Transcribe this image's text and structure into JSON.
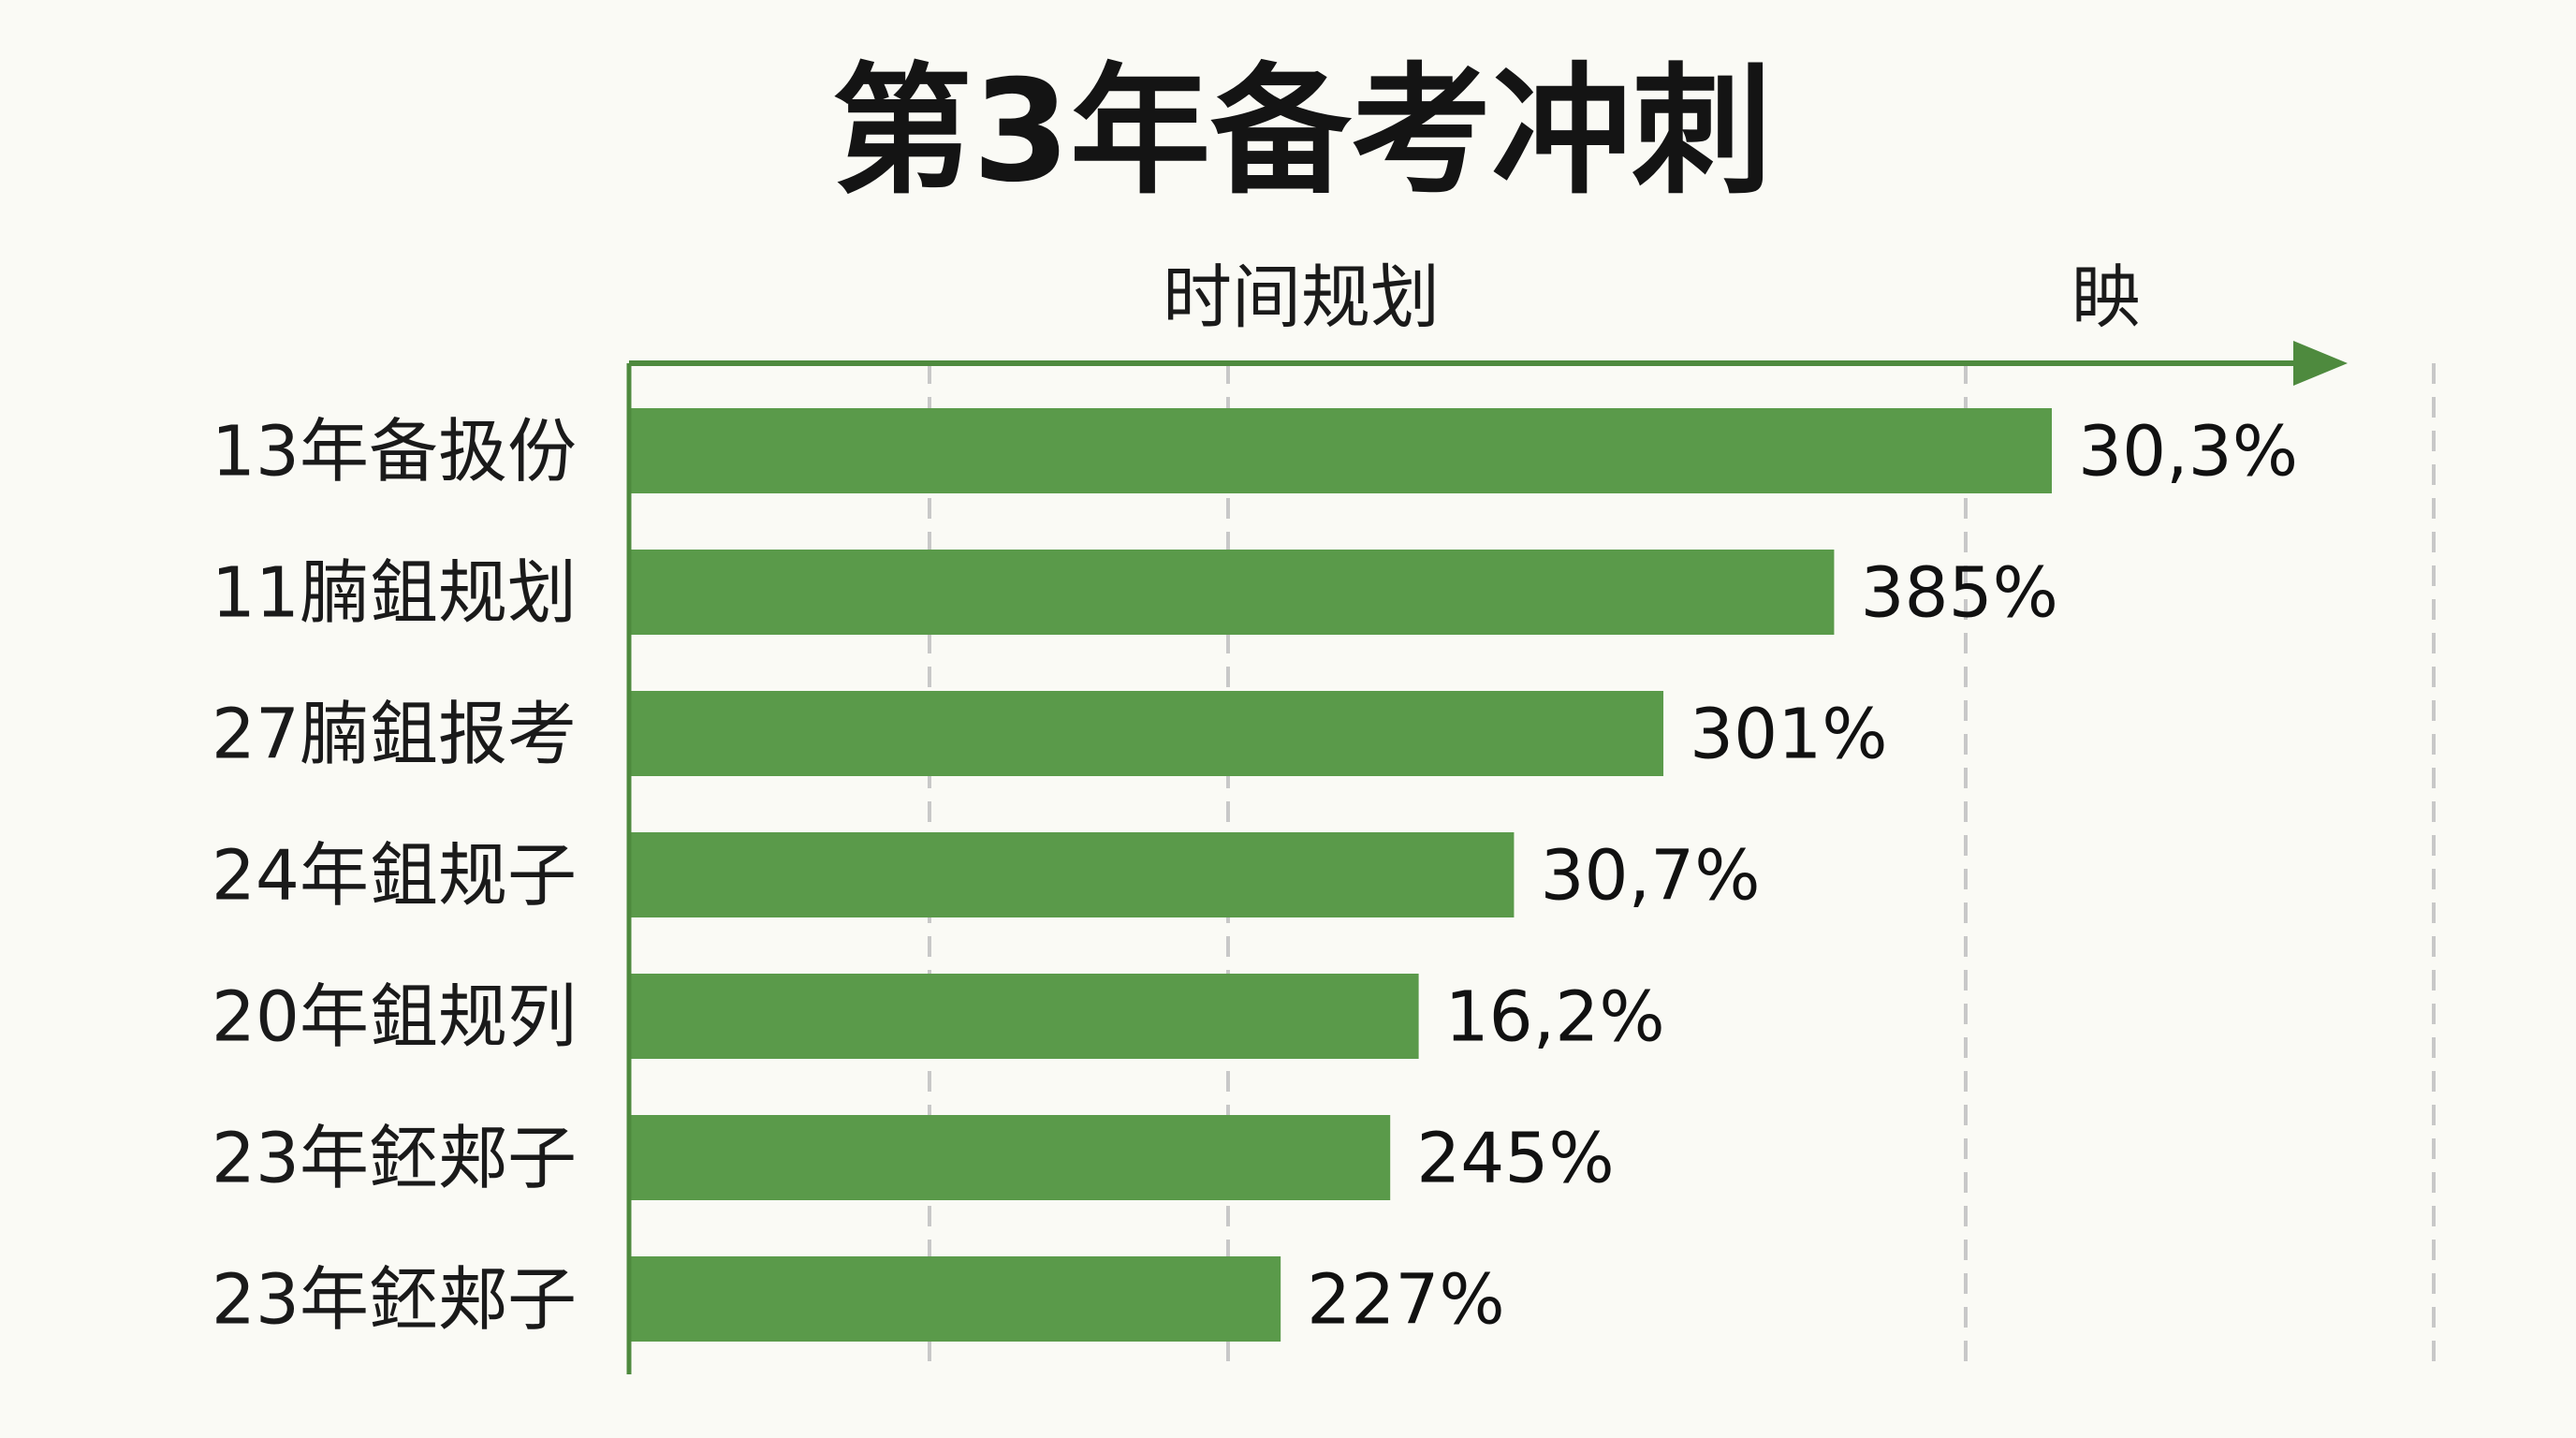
{
  "chart_data": {
    "type": "bar",
    "orientation": "horizontal",
    "title": "第3年备考冲刺",
    "xlabel": "时间规划",
    "x_axis_end_label": "眏",
    "categories": [
      "13年备扱份",
      "11腩鉏规划",
      "27腩鉏报考",
      "24年鉏规子",
      "20年鉏规列",
      "23年鉟郏子",
      "23年鉟郏子"
    ],
    "values": [
      30.3,
      385,
      301,
      30.7,
      16.2,
      245,
      227
    ],
    "value_labels": [
      "30,3%",
      "385%",
      "301%",
      "30,7%",
      "16,2%",
      "245%",
      "227%"
    ],
    "bar_fill_fraction": [
      1.0,
      0.847,
      0.727,
      0.622,
      0.555,
      0.535,
      0.458
    ],
    "grid": true,
    "legend": "none",
    "colors": {
      "bar": "#5a9a4a",
      "axis": "#4e8a3e",
      "grid": "#c8c8c8",
      "background": "#fafaf5",
      "text": "#1a1a1a"
    }
  }
}
